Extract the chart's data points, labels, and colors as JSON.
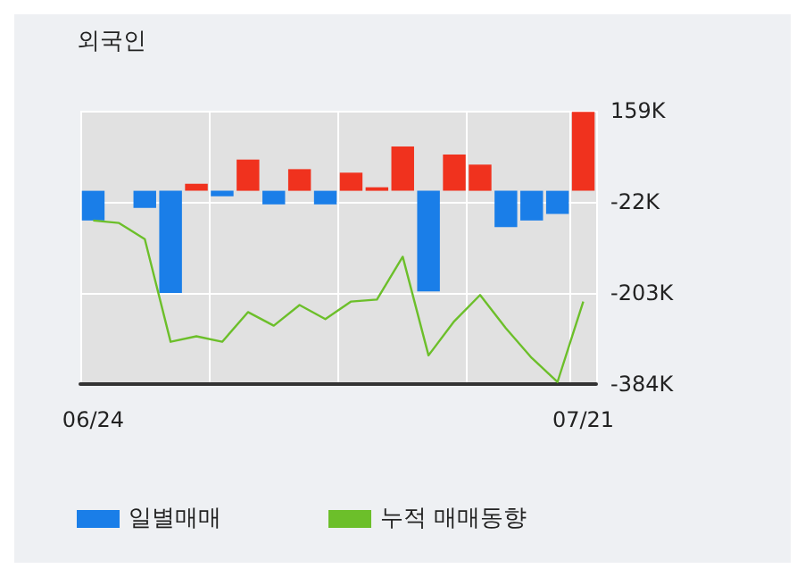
{
  "chart_data": {
    "type": "bar",
    "title": "외국인",
    "categories": [
      "06/24",
      null,
      null,
      null,
      null,
      null,
      null,
      null,
      null,
      null,
      null,
      null,
      null,
      null,
      null,
      null,
      null,
      null,
      null,
      "07/21"
    ],
    "series": [
      {
        "name": "일별매매",
        "color": "#1a7ee8",
        "colors": [
          "#1a7ee8",
          "#1a7ee8",
          "#1a7ee8",
          "#1a7ee8",
          "#f0321e",
          "#1a7ee8",
          "#f0321e",
          "#1a7ee8",
          "#f0321e",
          "#1a7ee8",
          "#f0321e",
          "#f0321e",
          "#f0321e",
          "#1a7ee8",
          "#f0321e",
          "#f0321e",
          "#1a7ee8",
          "#1a7ee8",
          "#1a7ee8",
          "#f0321e"
        ],
        "values": [
          -59,
          0,
          -34,
          -203,
          14,
          -11,
          62,
          -27,
          43,
          -27,
          36,
          7,
          88,
          -200,
          72,
          52,
          -72,
          -59,
          -46,
          157
        ]
      },
      {
        "name": "누적 매매동향",
        "type": "line",
        "color": "#6cbf2a",
        "values": [
          -59,
          -64,
          -96,
          -300,
          -289,
          -300,
          -241,
          -268,
          -227,
          -255,
          -220,
          -216,
          -131,
          -327,
          -259,
          -207,
          -273,
          -332,
          -380,
          -220
        ]
      }
    ],
    "ylim": [
      -384,
      159
    ],
    "yticks": [
      {
        "value": 159,
        "label": "159K"
      },
      {
        "value": -22,
        "label": "-22K"
      },
      {
        "value": -203,
        "label": "-203K"
      },
      {
        "value": -384,
        "label": "-384K"
      }
    ],
    "grid": true,
    "legend": "bottom left",
    "marker": "none",
    "line_style": "solid"
  }
}
